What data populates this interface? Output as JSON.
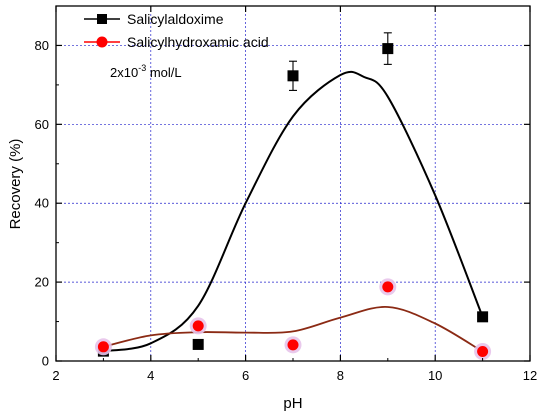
{
  "chart_data": {
    "type": "scatter",
    "xlabel": "pH",
    "ylabel": "Recovery (%)",
    "xlim": [
      2,
      12
    ],
    "ylim": [
      0,
      90
    ],
    "xticks": [
      2,
      4,
      6,
      8,
      10,
      12
    ],
    "yticks": [
      0,
      20,
      40,
      60,
      80
    ],
    "grid": true,
    "legend_position": "top-left",
    "annotation": {
      "base": "2x10",
      "exponent": "-3",
      "unit": " mol/L"
    },
    "series": [
      {
        "name": "Salicylaldoxime",
        "color": "#000000",
        "fit_color": "#000000",
        "marker": "square",
        "x": [
          3,
          5,
          7,
          9,
          11
        ],
        "y": [
          2.5,
          4.2,
          72.3,
          79.2,
          11.2
        ],
        "yerr": [
          0.3,
          0.3,
          3.7,
          4.0,
          0.5
        ],
        "fit": [
          [
            3,
            2.5
          ],
          [
            4,
            4.5
          ],
          [
            5,
            14
          ],
          [
            6,
            40
          ],
          [
            7,
            62
          ],
          [
            8,
            72.5
          ],
          [
            8.5,
            72
          ],
          [
            9,
            67
          ],
          [
            10,
            42
          ],
          [
            11,
            11.2
          ]
        ]
      },
      {
        "name": "Salicylhydroxamic acid",
        "color": "#ff0000",
        "fit_color": "#8b2a14",
        "marker": "circle",
        "x": [
          3,
          5,
          7,
          9,
          11
        ],
        "y": [
          3.6,
          8.9,
          4.1,
          18.8,
          2.4
        ],
        "fit": [
          [
            3,
            3.6
          ],
          [
            4,
            6.5
          ],
          [
            5,
            7.3
          ],
          [
            6,
            7.2
          ],
          [
            7,
            7.5
          ],
          [
            8,
            11
          ],
          [
            9,
            13.7
          ],
          [
            10,
            9.5
          ],
          [
            11,
            2.4
          ]
        ]
      }
    ]
  }
}
